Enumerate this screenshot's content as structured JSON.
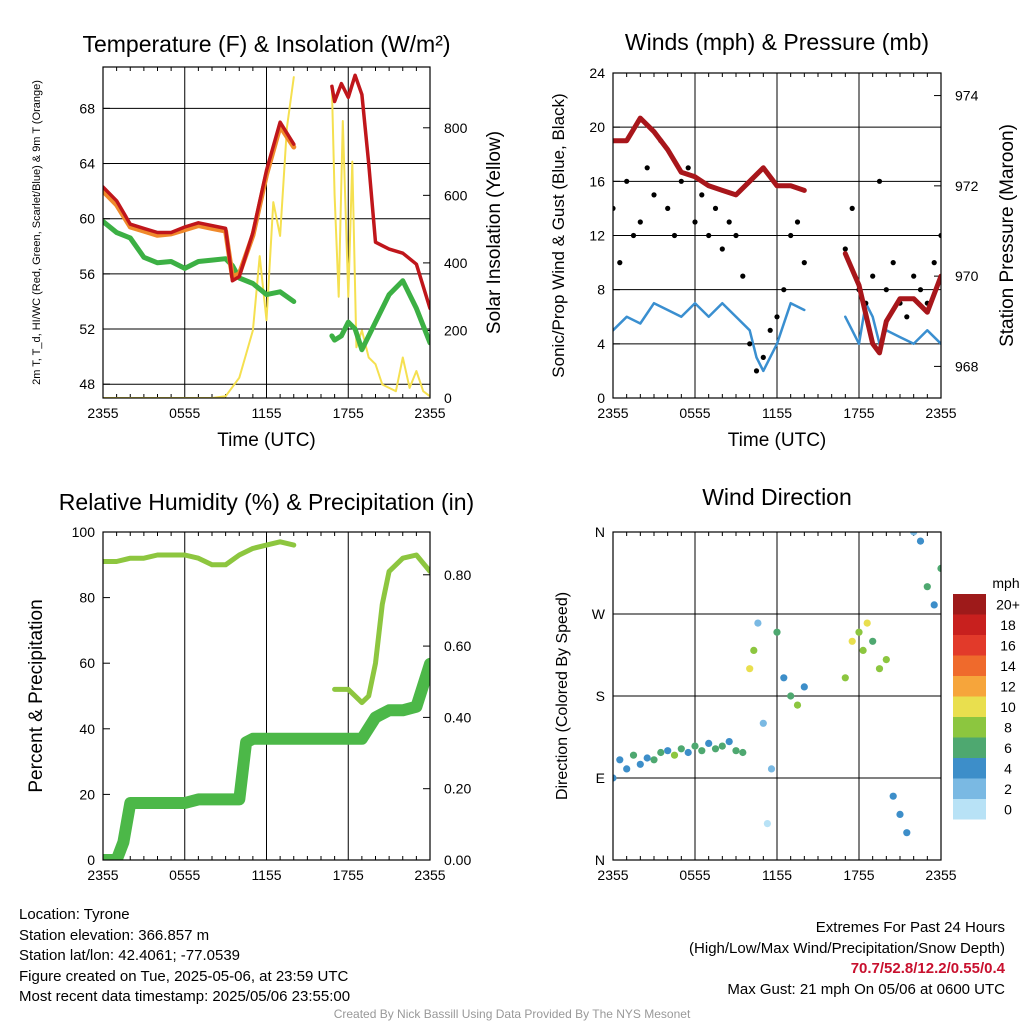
{
  "chart_data": [
    {
      "type": "line",
      "title": "Temperature (F) & Insolation (W/m²)",
      "xlabel": "Time (UTC)",
      "ylabel_left": "2m T, T_d, HI/WC (Red, Green, Scarlet/Blue) & 9m T (Orange)",
      "ylabel_right": "Solar Insolation (Yellow)",
      "x_ticks": [
        "2355",
        "0555",
        "1155",
        "1755",
        "2355"
      ],
      "ylim_left": [
        47,
        71
      ],
      "y_ticks_left": [
        48,
        52,
        56,
        60,
        64,
        68
      ],
      "ylim_right": [
        0,
        980
      ],
      "y_ticks_right": [
        0,
        200,
        400,
        600,
        800
      ],
      "series": [
        {
          "name": "2m T",
          "color": "#c0161b",
          "x": [
            0,
            1,
            2,
            3,
            4,
            5,
            6,
            7,
            8,
            9,
            9.5,
            10,
            11,
            12,
            13,
            14,
            14.1,
            16.8,
            17,
            17.5,
            18,
            18.5,
            19,
            19.5,
            20,
            21,
            22,
            23,
            24
          ],
          "y": [
            62.3,
            61.3,
            59.6,
            59.3,
            59.0,
            59.0,
            59.4,
            59.7,
            59.5,
            59.3,
            55.5,
            55.8,
            59,
            63.5,
            67.0,
            65.4,
            null,
            69.6,
            68.5,
            69.8,
            68.8,
            70.4,
            69.0,
            64.0,
            58.3,
            57.8,
            57.5,
            56.7,
            53.5
          ]
        },
        {
          "name": "9m T",
          "color": "#f08a2b",
          "x": [
            0,
            1,
            2,
            3,
            4,
            5,
            6,
            7,
            8,
            9,
            9.5,
            10,
            11,
            12,
            13,
            14
          ],
          "y": [
            62.0,
            61.0,
            59.4,
            59.1,
            58.8,
            58.9,
            59.2,
            59.5,
            59.3,
            59.1,
            55.8,
            56.0,
            58.8,
            63.2,
            66.7,
            65.2
          ]
        },
        {
          "name": "T_d",
          "color": "#3cb044",
          "x": [
            0,
            1,
            2,
            3,
            4,
            5,
            6,
            7,
            8,
            9,
            9.5,
            10,
            11,
            12,
            13,
            14,
            14.1,
            16.8,
            17,
            17.5,
            18,
            18.5,
            19,
            19.5,
            20,
            21,
            22,
            23,
            24
          ],
          "y": [
            59.8,
            59.0,
            58.6,
            57.2,
            56.8,
            56.9,
            56.4,
            56.9,
            57.0,
            57.1,
            56.6,
            55.7,
            55.3,
            54.5,
            54.7,
            54.0,
            null,
            51.5,
            51.2,
            51.5,
            52.5,
            52.0,
            50.5,
            51.5,
            52.5,
            54.5,
            55.5,
            53.5,
            51.0
          ]
        },
        {
          "name": "Solar Insolation",
          "color": "#f5e050",
          "x": [
            0,
            4,
            8,
            9,
            10,
            10.5,
            11,
            11.5,
            12,
            12.5,
            13,
            13.5,
            14,
            14.1,
            16.8,
            17,
            17.3,
            17.6,
            18,
            18.3,
            18.6,
            19,
            19.5,
            20,
            20.5,
            21,
            21.5,
            22,
            22.5,
            23,
            23.5,
            24
          ],
          "y": [
            0,
            0,
            0,
            5,
            60,
            130,
            200,
            420,
            230,
            580,
            480,
            800,
            950,
            null,
            920,
            600,
            300,
            820,
            300,
            700,
            150,
            200,
            120,
            100,
            40,
            30,
            20,
            120,
            30,
            80,
            20,
            5
          ]
        }
      ]
    },
    {
      "type": "scatter",
      "title": "Winds (mph) & Pressure (mb)",
      "xlabel": "Time (UTC)",
      "ylabel_left": "Sonic/Prop Wind & Gust (Blue, Black)",
      "ylabel_right": "Station Pressure (Maroon)",
      "x_ticks": [
        "2355",
        "0555",
        "1155",
        "1755",
        "2355"
      ],
      "ylim_left": [
        0,
        24
      ],
      "y_ticks_left": [
        0,
        4,
        8,
        12,
        16,
        20,
        24
      ],
      "ylim_right": [
        967.3,
        974.5
      ],
      "y_ticks_right": [
        968,
        970,
        972,
        974
      ],
      "series": [
        {
          "name": "Wind",
          "color": "#3a8fd0",
          "x": [
            0,
            1,
            2,
            3,
            4,
            5,
            6,
            7,
            8,
            9,
            10,
            10.5,
            11,
            12,
            13,
            14,
            14.1,
            17,
            17.5,
            18,
            18.5,
            19,
            19.5,
            20,
            21,
            22,
            23,
            24
          ],
          "y": [
            5,
            6,
            5.5,
            7,
            6.5,
            6,
            7,
            6,
            7,
            6,
            5,
            3,
            2,
            4,
            7,
            6.5,
            null,
            6,
            5,
            4,
            7,
            6,
            4,
            5,
            4.5,
            4,
            5,
            4
          ]
        },
        {
          "name": "Gust",
          "color": "#000000",
          "x": [
            0,
            0.5,
            1,
            1.5,
            2,
            2.5,
            3,
            3.5,
            4,
            4.5,
            5,
            5.5,
            6,
            6.5,
            7,
            7.5,
            8,
            8.5,
            9,
            9.5,
            10,
            10.5,
            11,
            11.5,
            12,
            12.5,
            13,
            13.5,
            14,
            17,
            17.5,
            18,
            18.5,
            19,
            19.5,
            20,
            20.5,
            21,
            21.5,
            22,
            22.5,
            23,
            23.5,
            24
          ],
          "y": [
            14,
            10,
            16,
            12,
            13,
            17,
            15,
            19,
            14,
            12,
            16,
            17,
            13,
            15,
            12,
            14,
            11,
            13,
            12,
            9,
            4,
            2,
            3,
            5,
            6,
            8,
            12,
            13,
            10,
            11,
            14,
            8,
            7,
            9,
            16,
            8,
            10,
            7,
            6,
            9,
            8,
            7,
            10,
            12
          ]
        },
        {
          "name": "Pressure",
          "color": "#a8161b",
          "axis": "right",
          "x": [
            0,
            1,
            2,
            3,
            4,
            5,
            6,
            7,
            8,
            9,
            10,
            11,
            12,
            13,
            14,
            14.1,
            17,
            18,
            19,
            19.5,
            20,
            21,
            22,
            23,
            24
          ],
          "y": [
            973.0,
            973.0,
            973.5,
            973.2,
            972.8,
            972.3,
            972.2,
            972.0,
            971.9,
            971.8,
            972.1,
            972.4,
            972.0,
            972.0,
            971.9,
            null,
            970.5,
            969.8,
            968.5,
            968.3,
            969.0,
            969.5,
            969.5,
            969.2,
            970.0
          ]
        }
      ]
    },
    {
      "type": "line",
      "title": "Relative Humidity (%) & Precipitation (in)",
      "ylabel_left": "Percent & Precipitation",
      "x_ticks": [
        "2355",
        "0555",
        "1155",
        "1755",
        "2355"
      ],
      "ylim_left": [
        0,
        100
      ],
      "y_ticks_left": [
        0,
        20,
        40,
        60,
        80,
        100
      ],
      "ylim_right": [
        0,
        0.92
      ],
      "y_ticks_right": [
        "0.00",
        "0.20",
        "0.40",
        "0.60",
        "0.80"
      ],
      "series": [
        {
          "name": "Relative Humidity",
          "color": "#8dc63f",
          "x": [
            0,
            1,
            2,
            3,
            4,
            5,
            6,
            7,
            8,
            9,
            10,
            11,
            12,
            13,
            14,
            14.1,
            17,
            18,
            19,
            19.5,
            20,
            20.5,
            21,
            22,
            23,
            24
          ],
          "y": [
            91,
            91,
            92,
            92,
            93,
            93,
            93,
            92,
            90,
            90,
            93,
            95,
            96,
            97,
            96,
            null,
            52,
            52,
            48,
            50,
            60,
            78,
            88,
            92,
            93,
            88
          ]
        },
        {
          "name": "Precipitation",
          "color": "#4cb848",
          "axis": "right",
          "x": [
            0,
            1,
            1.5,
            2,
            3,
            4,
            5,
            6,
            7,
            8,
            9,
            10,
            10.5,
            11,
            12,
            13,
            14,
            17,
            18,
            19,
            20,
            20.5,
            21,
            22,
            23,
            24
          ],
          "y": [
            0,
            0,
            0.05,
            0.16,
            0.16,
            0.16,
            0.16,
            0.16,
            0.17,
            0.17,
            0.17,
            0.17,
            0.33,
            0.34,
            0.34,
            0.34,
            0.34,
            0.34,
            0.34,
            0.34,
            0.4,
            0.41,
            0.42,
            0.42,
            0.43,
            0.55
          ]
        }
      ]
    },
    {
      "type": "scatter",
      "title": "Wind Direction",
      "ylabel_left": "Direction (Colored By Speed)",
      "x_ticks": [
        "2355",
        "0555",
        "1155",
        "1755",
        "2355"
      ],
      "direction_labels": [
        "N",
        "E",
        "S",
        "W",
        "N"
      ],
      "ylim_degrees": [
        0,
        360
      ],
      "colorbar_title": "mph",
      "colorbar_labels": [
        "20+",
        "18",
        "16",
        "14",
        "12",
        "10",
        "8",
        "6",
        "4",
        "2",
        "0"
      ],
      "colorbar_colors": [
        "#9e1a1a",
        "#c8201e",
        "#e23a2a",
        "#ef6a2c",
        "#f6a53b",
        "#e9df4e",
        "#8cc63f",
        "#4ea870",
        "#3d8ec9",
        "#7ab9e3",
        "#b8e2f6"
      ],
      "series": [
        {
          "name": "Direction",
          "x": [
            0,
            0.5,
            1,
            1.5,
            2,
            2.5,
            3,
            3.5,
            4,
            4.5,
            5,
            5.5,
            6,
            6.5,
            7,
            7.5,
            8,
            8.5,
            9,
            9.5,
            10,
            10.3,
            10.6,
            11,
            11.3,
            11.6,
            12,
            12.5,
            13,
            13.5,
            14,
            14.1,
            17,
            17.5,
            18,
            18.3,
            18.6,
            19,
            19.5,
            20,
            20.5,
            21,
            21.5,
            22,
            22.5,
            23,
            23.5,
            24
          ],
          "y": [
            90,
            110,
            100,
            115,
            105,
            112,
            110,
            118,
            120,
            115,
            122,
            118,
            125,
            120,
            128,
            122,
            125,
            130,
            120,
            118,
            210,
            230,
            260,
            150,
            40,
            100,
            250,
            200,
            180,
            170,
            190,
            null,
            200,
            240,
            250,
            230,
            260,
            240,
            210,
            220,
            70,
            50,
            30,
            360,
            350,
            300,
            280,
            320
          ],
          "speed": [
            3,
            3,
            4,
            5,
            4,
            3,
            6,
            5,
            4,
            7,
            5,
            4,
            6,
            5,
            4,
            6,
            5,
            4,
            6,
            5,
            9,
            8,
            2,
            1,
            0,
            2,
            5,
            4,
            6,
            7,
            4,
            null,
            8,
            9,
            8,
            7,
            10,
            6,
            8,
            7,
            3,
            4,
            3,
            2,
            4,
            5,
            4,
            6
          ]
        }
      ]
    }
  ],
  "info": {
    "location": "Location: Tyrone",
    "elevation": "Station elevation: 366.857 m",
    "latlon": "Station lat/lon: 42.4061; -77.0539",
    "created": "Figure created on Tue, 2025-05-06, at 23:59 UTC",
    "recent": "Most recent data timestamp: 2025/05/06 23:55:00"
  },
  "extremes": {
    "title": "Extremes For Past 24 Hours",
    "subtitle": "(High/Low/Max Wind/Precipitation/Snow Depth)",
    "values": "70.7/52.8/12.2/0.55/0.4",
    "gust": "Max Gust: 21 mph On 05/06 at 0600 UTC"
  },
  "credit": "Created By Nick Bassill Using Data Provided By The NYS Mesonet"
}
